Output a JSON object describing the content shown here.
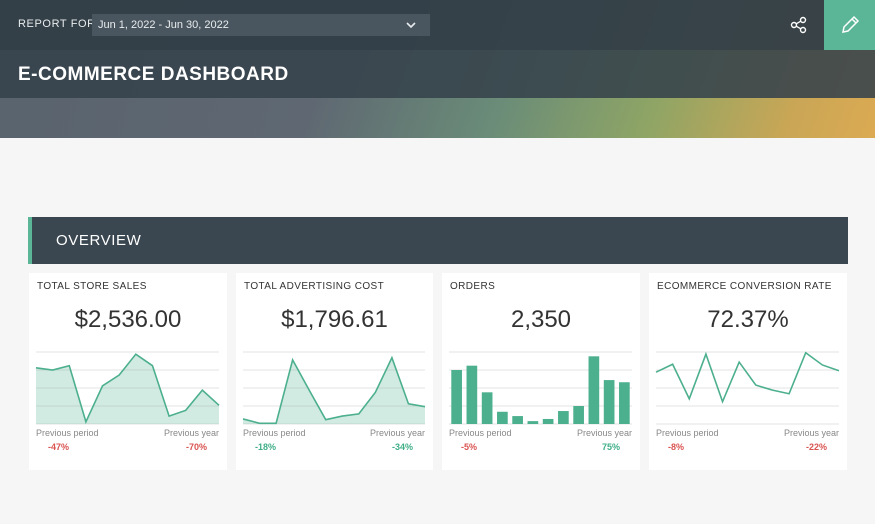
{
  "header": {
    "report_for": "REPORT FOR",
    "date_range": "Jun 1, 2022 - Jun 30, 2022",
    "title": "E-COMMERCE DASHBOARD"
  },
  "section": {
    "title": "OVERVIEW"
  },
  "cards": [
    {
      "title": "TOTAL STORE SALES",
      "value": "$2,536.00",
      "chart": {
        "type": "area",
        "ylim": [
          0,
          100
        ],
        "color": "#4caf8d",
        "values": [
          78,
          75,
          81,
          3,
          53,
          68,
          97,
          81,
          11,
          19,
          47,
          26
        ]
      },
      "comparisons": [
        {
          "label": "Previous period",
          "change": "-47%",
          "color": "#d9534f"
        },
        {
          "label": "Previous year",
          "change": "-70%",
          "color": "#d9534f"
        }
      ]
    },
    {
      "title": "TOTAL ADVERTISING COST",
      "value": "$1,796.61",
      "chart": {
        "type": "area",
        "ylim": [
          0,
          100
        ],
        "color": "#4caf8d",
        "values": [
          7,
          1,
          1,
          89,
          47,
          6,
          11,
          14,
          44,
          92,
          28,
          24
        ]
      },
      "comparisons": [
        {
          "label": "Previous period",
          "change": "-18%",
          "color": "#3fae87"
        },
        {
          "label": "Previous year",
          "change": "-34%",
          "color": "#3fae87"
        }
      ]
    },
    {
      "title": "ORDERS",
      "value": "2,350",
      "chart": {
        "type": "bar",
        "ylim": [
          0,
          100
        ],
        "color": "#4caf8d",
        "values": [
          75,
          81,
          44,
          17,
          11,
          4,
          7,
          18,
          25,
          94,
          61,
          58
        ]
      },
      "comparisons": [
        {
          "label": "Previous period",
          "change": "-5%",
          "color": "#d9534f"
        },
        {
          "label": "Previous year",
          "change": "75%",
          "color": "#3fae87"
        }
      ]
    },
    {
      "title": "ECOMMERCE CONVERSION RATE",
      "value": "72.37%",
      "chart": {
        "type": "line",
        "ylim": [
          0,
          100
        ],
        "color": "#4caf8d",
        "values": [
          72,
          83,
          35,
          97,
          31,
          86,
          54,
          47,
          42,
          99,
          82,
          74
        ]
      },
      "comparisons": [
        {
          "label": "Previous period",
          "change": "-8%",
          "color": "#d9534f"
        },
        {
          "label": "Previous year",
          "change": "-22%",
          "color": "#d9534f"
        }
      ]
    }
  ]
}
